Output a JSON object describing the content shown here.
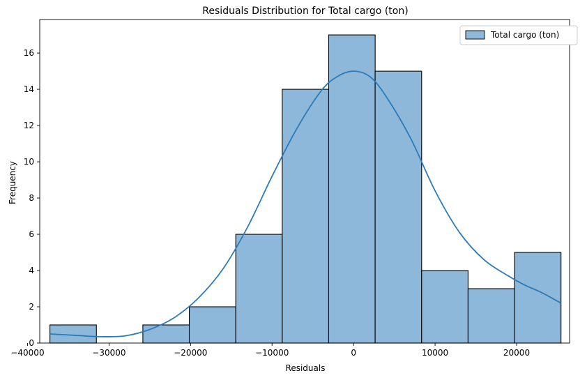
{
  "chart_data": {
    "type": "bar",
    "title": "Residuals Distribution for Total cargo (ton)",
    "xlabel": "Residuals",
    "ylabel": "Frequency",
    "xlim": [
      -38500,
      26500
    ],
    "ylim": [
      0,
      17.85
    ],
    "bin_edges": [
      -37250,
      -31550,
      -25850,
      -20150,
      -14450,
      -8750,
      -3050,
      2650,
      8350,
      14050,
      19750,
      25450
    ],
    "counts": [
      1,
      0,
      1,
      2,
      6,
      14,
      17,
      15,
      4,
      3,
      5
    ],
    "xticks": [
      -40000,
      -30000,
      -20000,
      -10000,
      0,
      10000,
      20000
    ],
    "xtick_labels": [
      "−40000",
      "−30000",
      "−20000",
      "−10000",
      "0",
      "10000",
      "20000"
    ],
    "yticks": [
      0,
      2,
      4,
      6,
      8,
      10,
      12,
      14,
      16
    ],
    "ytick_labels": [
      "0",
      "2",
      "4",
      "6",
      "8",
      "10",
      "12",
      "14",
      "16"
    ],
    "kde": {
      "x": [
        -37250,
        -34000,
        -31000,
        -28000,
        -25000,
        -22000,
        -19000,
        -16000,
        -13000,
        -10000,
        -7000,
        -4000,
        -2000,
        0,
        2000,
        4000,
        7000,
        10000,
        13000,
        16000,
        19000,
        21000,
        23000,
        25450
      ],
      "y": [
        0.5,
        0.42,
        0.35,
        0.4,
        0.75,
        1.4,
        2.5,
        4.1,
        6.4,
        9.2,
        11.8,
        13.9,
        14.7,
        15.0,
        14.7,
        13.6,
        11.3,
        8.4,
        6.1,
        4.6,
        3.7,
        3.2,
        2.8,
        2.2
      ]
    },
    "legend": {
      "position": "top-right",
      "entries": [
        "Total cargo (ton)"
      ]
    },
    "grid": false,
    "colors": {
      "bar_fill": "#8db8da",
      "bar_edge": "#000000",
      "kde_line": "#2b7bba",
      "axis": "#000000"
    }
  }
}
